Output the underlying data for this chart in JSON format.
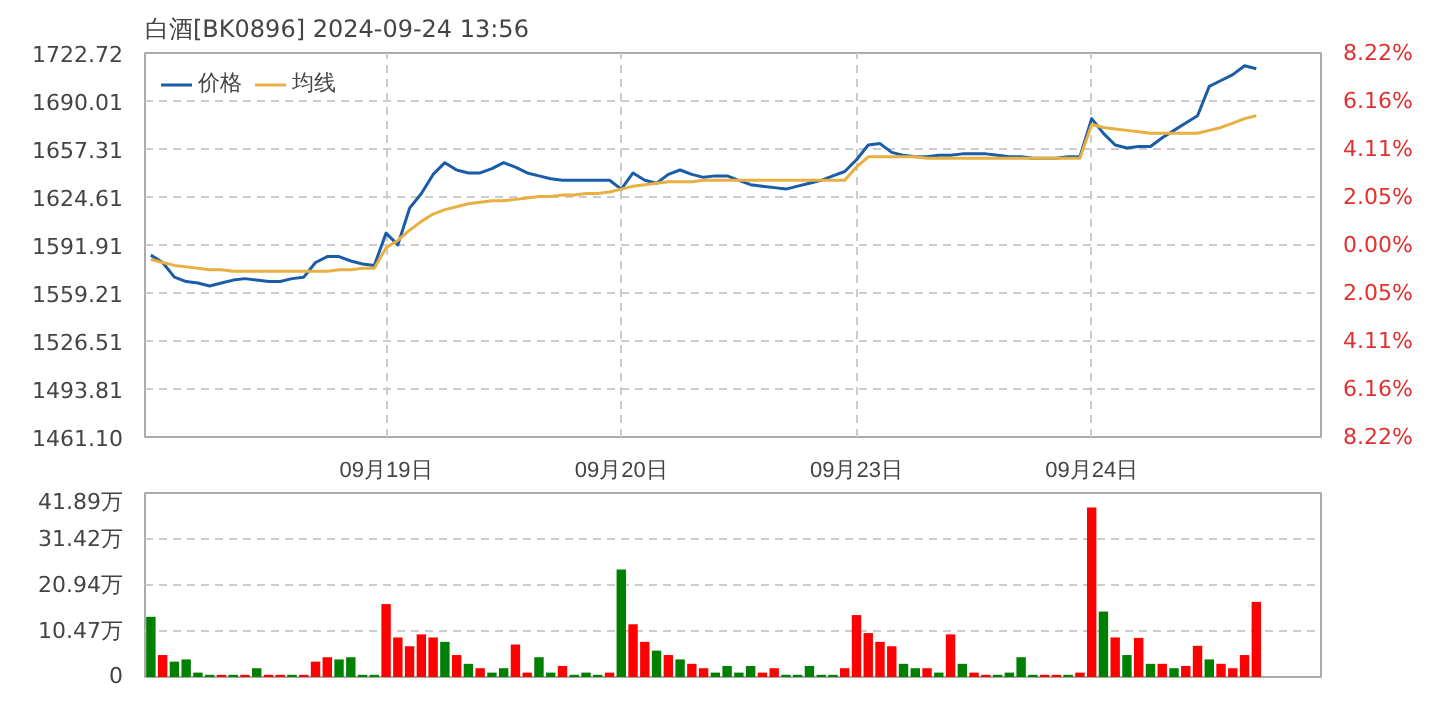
{
  "chart_data": [
    {
      "type": "line",
      "title": "白酒[BK0896] 2024-09-24 13:56",
      "legend": "top left",
      "grid": true,
      "categories": [
        null,
        null,
        null,
        null,
        null,
        null,
        null,
        null,
        null,
        null,
        null,
        null,
        null,
        null,
        null,
        null,
        null,
        null,
        null,
        null,
        "09月19日",
        null,
        null,
        null,
        null,
        null,
        null,
        null,
        null,
        null,
        null,
        null,
        null,
        null,
        null,
        null,
        null,
        null,
        null,
        null,
        "09月20日",
        null,
        null,
        null,
        null,
        null,
        null,
        null,
        null,
        null,
        null,
        null,
        null,
        null,
        null,
        null,
        null,
        null,
        null,
        null,
        "09月23日",
        null,
        null,
        null,
        null,
        null,
        null,
        null,
        null,
        null,
        null,
        null,
        null,
        null,
        null,
        null,
        null,
        null,
        null,
        null,
        "09月24日",
        null,
        null,
        null,
        null,
        null,
        null,
        null,
        null,
        null,
        null,
        null,
        null,
        null,
        null,
        null,
        null,
        null,
        null,
        null
      ],
      "ylim": [
        1461.1,
        1722.72
      ],
      "yticks": [
        {
          "value": 1461.1,
          "label": "1461.10"
        },
        1493.81,
        1526.51,
        1559.21,
        1591.91,
        1624.61,
        1657.31,
        1690.01,
        1722.72
      ],
      "y2lim": [
        -8.22,
        8.22
      ],
      "y2ticks": [
        {
          "value": -8.22,
          "label": "8.22%"
        },
        {
          "value": -6.16,
          "label": "6.16%"
        },
        {
          "value": -4.11,
          "label": "4.11%"
        },
        {
          "value": -2.05,
          "label": "2.05%"
        },
        {
          "value": 0,
          "label": "0.00%"
        },
        {
          "value": 2.05,
          "label": "2.05%"
        },
        {
          "value": 4.11,
          "label": "4.11%"
        },
        {
          "value": 6.16,
          "label": "6.16%"
        },
        {
          "value": 8.22,
          "label": "8.22%"
        }
      ],
      "series": [
        {
          "name": "价格",
          "color": "#1a5ca8",
          "values": [
            1585,
            1580,
            1570,
            1567,
            1566,
            1564,
            1566,
            1568,
            1569,
            1568,
            1567,
            1567,
            1569,
            1570,
            1580,
            1584,
            1584,
            1581,
            1579,
            1578,
            1600,
            1592,
            1617,
            1627,
            1640,
            1648,
            1643,
            1641,
            1641,
            1644,
            1648,
            1645,
            1641,
            1639,
            1637,
            1636,
            1636,
            1636,
            1636,
            1636,
            1630,
            1641,
            1636,
            1634,
            1640,
            1643,
            1640,
            1638,
            1639,
            1639,
            1636,
            1633,
            1632,
            1631,
            1630,
            1632,
            1634,
            1636,
            1639,
            1642,
            1650,
            1660,
            1661,
            1655,
            1653,
            1652,
            1652,
            1653,
            1653,
            1654,
            1654,
            1654,
            1653,
            1652,
            1652,
            1651,
            1651,
            1651,
            1652,
            1652,
            1678,
            1668,
            1660,
            1658,
            1659,
            1659,
            1665,
            1670,
            1675,
            1680,
            1700,
            1704,
            1708,
            1714,
            1712,
            null,
            null,
            null,
            null,
            null
          ]
        },
        {
          "name": "均线",
          "color": "#e8b040",
          "values": [
            1582,
            1580,
            1578,
            1577,
            1576,
            1575,
            1575,
            1574,
            1574,
            1574,
            1574,
            1574,
            1574,
            1574,
            1574,
            1574,
            1575,
            1575,
            1576,
            1576,
            1590,
            1595,
            1602,
            1608,
            1613,
            1616,
            1618,
            1620,
            1621,
            1622,
            1622,
            1623,
            1624,
            1625,
            1625,
            1626,
            1626,
            1627,
            1627,
            1628,
            1630,
            1632,
            1633,
            1634,
            1635,
            1635,
            1635,
            1636,
            1636,
            1636,
            1636,
            1636,
            1636,
            1636,
            1636,
            1636,
            1636,
            1636,
            1636,
            1636,
            1645,
            1652,
            1652,
            1652,
            1652,
            1652,
            1651,
            1651,
            1651,
            1651,
            1651,
            1651,
            1651,
            1651,
            1651,
            1651,
            1651,
            1651,
            1651,
            1651,
            1674,
            1672,
            1671,
            1670,
            1669,
            1668,
            1668,
            1668,
            1668,
            1668,
            1670,
            1672,
            1675,
            1678,
            1680,
            null,
            null,
            null,
            null,
            null
          ]
        }
      ]
    },
    {
      "type": "bar",
      "grid": "y",
      "ylim": [
        0,
        41.89
      ],
      "categories": [
        null,
        null,
        null,
        null,
        null,
        null,
        null,
        null,
        null,
        null,
        null,
        null,
        null,
        null,
        null,
        null,
        null,
        null,
        null,
        null,
        null,
        null,
        null,
        null,
        null,
        null,
        null,
        null,
        null,
        null,
        null,
        null,
        null,
        null,
        null,
        null,
        null,
        null,
        null,
        null,
        null,
        null,
        null,
        null,
        null,
        null,
        null,
        null,
        null,
        null,
        null,
        null,
        null,
        null,
        null,
        null,
        null,
        null,
        null,
        null,
        null,
        null,
        null,
        null,
        null,
        null,
        null,
        null,
        null,
        null,
        null,
        null,
        null,
        null,
        null,
        null,
        null,
        null,
        null,
        null,
        null,
        null,
        null,
        null,
        null,
        null,
        null,
        null,
        null,
        null,
        null,
        null,
        null,
        null,
        null,
        null,
        null,
        null,
        null,
        null
      ],
      "yticks": [
        0,
        {
          "value": 10.47,
          "label": "10.47万"
        },
        {
          "value": 20.94,
          "label": "20.94万"
        },
        {
          "value": 31.42,
          "label": "31.42万"
        },
        {
          "value": 41.89,
          "label": "41.89万"
        }
      ],
      "values": [
        13.7,
        5,
        3.5,
        4,
        1,
        0.5,
        0.5,
        0.5,
        0.5,
        2,
        0.5,
        0.5,
        0.5,
        0.5,
        3.5,
        4.5,
        4,
        4.5,
        0.5,
        0.5,
        16.6,
        9,
        7,
        9.7,
        9,
        8,
        5,
        3,
        2,
        1,
        2,
        7.4,
        1,
        4.5,
        1,
        2.5,
        0.5,
        1,
        0.5,
        1,
        24.5,
        12,
        8,
        6,
        5,
        4,
        3,
        2,
        1,
        2.5,
        1,
        2.5,
        1,
        2,
        0.5,
        0.5,
        2.5,
        0.5,
        0.5,
        2,
        14.1,
        10,
        8,
        7,
        3,
        2,
        2,
        1,
        9.7,
        3,
        1,
        0.5,
        0.5,
        1,
        4.5,
        0.5,
        0.5,
        0.5,
        0.5,
        1,
        38.6,
        14.9,
        9,
        5,
        8.9,
        3,
        3,
        2,
        2.5,
        7.1,
        4,
        3,
        2,
        5,
        17.1,
        null,
        null,
        null,
        null,
        null
      ],
      "colors": [
        "#008000",
        "#ff0000",
        "#008000",
        "#008000",
        "#008000",
        "#008000",
        "#ff0000",
        "#008000",
        "#ff0000",
        "#008000",
        "#ff0000",
        "#ff0000",
        "#008000",
        "#ff0000",
        "#ff0000",
        "#ff0000",
        "#008000",
        "#008000",
        "#008000",
        "#008000",
        "#ff0000",
        "#ff0000",
        "#ff0000",
        "#ff0000",
        "#ff0000",
        "#008000",
        "#ff0000",
        "#008000",
        "#ff0000",
        "#008000",
        "#008000",
        "#ff0000",
        "#ff0000",
        "#008000",
        "#008000",
        "#ff0000",
        "#008000",
        "#008000",
        "#008000",
        "#ff0000",
        "#008000",
        "#ff0000",
        "#ff0000",
        "#008000",
        "#ff0000",
        "#008000",
        "#ff0000",
        "#ff0000",
        "#008000",
        "#008000",
        "#008000",
        "#008000",
        "#ff0000",
        "#ff0000",
        "#008000",
        "#008000",
        "#008000",
        "#008000",
        "#008000",
        "#ff0000",
        "#ff0000",
        "#ff0000",
        "#ff0000",
        "#ff0000",
        "#008000",
        "#008000",
        "#ff0000",
        "#008000",
        "#ff0000",
        "#008000",
        "#ff0000",
        "#ff0000",
        "#008000",
        "#008000",
        "#008000",
        "#008000",
        "#ff0000",
        "#ff0000",
        "#008000",
        "#ff0000",
        "#ff0000",
        "#008000",
        "#ff0000",
        "#008000",
        "#ff0000",
        "#008000",
        "#ff0000",
        "#008000",
        "#ff0000",
        "#ff0000",
        "#008000",
        "#ff0000",
        "#ff0000",
        "#ff0000",
        "#ff0000",
        "#ff0000",
        "#ff0000",
        "#ff0000",
        "#ff0000",
        "#ff0000"
      ]
    }
  ]
}
